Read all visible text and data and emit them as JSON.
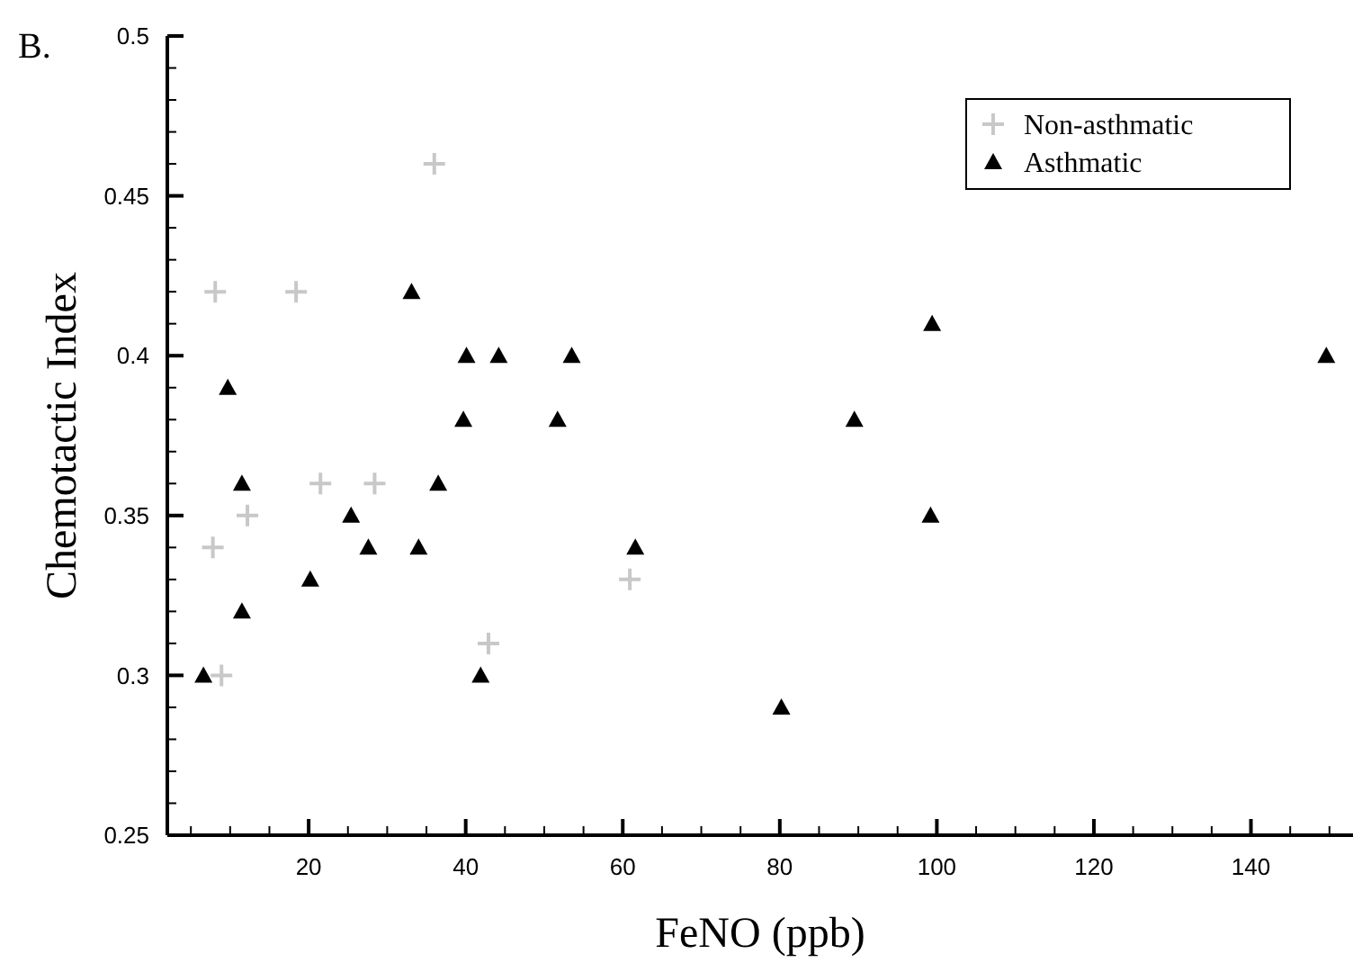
{
  "chart_data": {
    "type": "scatter",
    "title": "B.",
    "xlabel": "FeNO (ppb)",
    "ylabel": "Chemotactic Index",
    "xlim": [
      2,
      153
    ],
    "ylim": [
      0.25,
      0.5
    ],
    "xticks": [
      {
        "value": 5,
        "label": null
      },
      {
        "value": 10,
        "label": null
      },
      {
        "value": 15,
        "label": null
      },
      20,
      {
        "value": 25,
        "label": null
      },
      {
        "value": 30,
        "label": null
      },
      {
        "value": 35,
        "label": null
      },
      40,
      {
        "value": 45,
        "label": null
      },
      {
        "value": 50,
        "label": null
      },
      {
        "value": 55,
        "label": null
      },
      60,
      {
        "value": 65,
        "label": null
      },
      {
        "value": 70,
        "label": null
      },
      {
        "value": 75,
        "label": null
      },
      80,
      {
        "value": 85,
        "label": null
      },
      {
        "value": 90,
        "label": null
      },
      {
        "value": 95,
        "label": null
      },
      100,
      {
        "value": 105,
        "label": null
      },
      {
        "value": 110,
        "label": null
      },
      {
        "value": 115,
        "label": null
      },
      120,
      {
        "value": 125,
        "label": null
      },
      {
        "value": 130,
        "label": null
      },
      {
        "value": 135,
        "label": null
      },
      140,
      {
        "value": 145,
        "label": null
      },
      {
        "value": 150,
        "label": null
      }
    ],
    "yticks": [
      0.25,
      {
        "value": 0.26,
        "label": null
      },
      {
        "value": 0.27,
        "label": null
      },
      {
        "value": 0.28,
        "label": null
      },
      {
        "value": 0.29,
        "label": null
      },
      0.3,
      {
        "value": 0.31,
        "label": null
      },
      {
        "value": 0.32,
        "label": null
      },
      {
        "value": 0.33,
        "label": null
      },
      {
        "value": 0.34,
        "label": null
      },
      0.35,
      {
        "value": 0.36,
        "label": null
      },
      {
        "value": 0.37,
        "label": null
      },
      {
        "value": 0.38,
        "label": null
      },
      {
        "value": 0.39,
        "label": null
      },
      0.4,
      {
        "value": 0.41,
        "label": null
      },
      {
        "value": 0.42,
        "label": null
      },
      {
        "value": 0.43,
        "label": null
      },
      {
        "value": 0.44,
        "label": null
      },
      0.45,
      {
        "value": 0.46,
        "label": null
      },
      {
        "value": 0.47,
        "label": null
      },
      {
        "value": 0.48,
        "label": null
      },
      {
        "value": 0.49,
        "label": null
      },
      0.5
    ],
    "grid": false,
    "legend": "top right",
    "series": [
      {
        "name": "Non-asthmatic",
        "color": "#c8c8c8",
        "marker": "cross",
        "x": [
          8.1,
          18.4,
          36,
          7.8,
          8.9,
          12.2,
          21.5,
          28.4,
          42.9,
          60.9
        ],
        "values": [
          0.42,
          0.42,
          0.46,
          0.34,
          0.3,
          0.35,
          0.36,
          0.36,
          0.31,
          0.33
        ]
      },
      {
        "name": "Asthmatic",
        "color": "#000000",
        "marker": "triangle",
        "x": [
          9.7,
          11.5,
          11.5,
          6.6,
          20.2,
          25.4,
          27.6,
          33.1,
          34,
          36.5,
          39.7,
          40.1,
          44.2,
          41.9,
          51.7,
          53.5,
          61.6,
          80.2,
          89.5,
          99.4,
          99.2,
          149.6
        ],
        "values": [
          0.39,
          0.36,
          0.32,
          0.3,
          0.33,
          0.35,
          0.34,
          0.42,
          0.34,
          0.36,
          0.38,
          0.4,
          0.4,
          0.3,
          0.38,
          0.4,
          0.34,
          0.29,
          0.38,
          0.41,
          0.35,
          0.4
        ]
      }
    ]
  }
}
